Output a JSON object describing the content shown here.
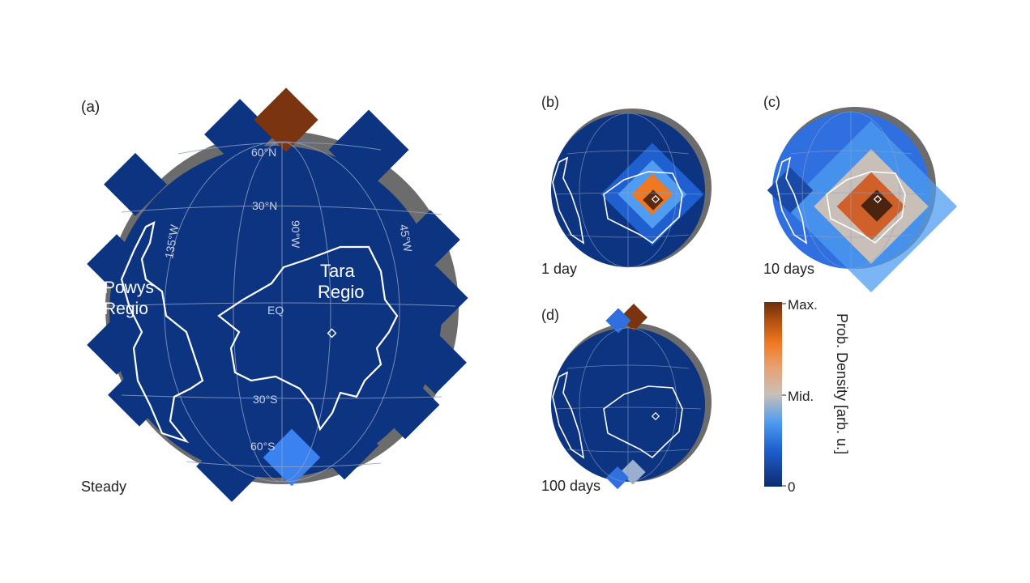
{
  "chart_data": [
    {
      "type": "heatmap",
      "panel": "(a)",
      "caption": "Steady",
      "grid_labels": {
        "latitudes": [
          "60°N",
          "30°N",
          "EQ",
          "30°S",
          "60°S"
        ],
        "longitudes": [
          "135°W",
          "90°W",
          "45°W"
        ]
      },
      "regions": [
        "Powys\nRegio",
        "Tara\nRegio"
      ],
      "marker": "target-site",
      "hotspots": [
        {
          "location": "north pole",
          "level": 1.0
        },
        {
          "location": "south pole",
          "level": 0.38
        }
      ]
    },
    {
      "type": "heatmap",
      "panel": "(b)",
      "caption": "1 day",
      "hotspots": [
        {
          "location": "Tara Regio, near marker",
          "level": 1.0
        }
      ]
    },
    {
      "type": "heatmap",
      "panel": "(c)",
      "caption": "10 days",
      "hotspots": [
        {
          "location": "Tara Regio, near marker",
          "level": 1.0
        }
      ]
    },
    {
      "type": "heatmap",
      "panel": "(d)",
      "caption": "100 days",
      "hotspots": [
        {
          "location": "north pole",
          "level": 1.0
        },
        {
          "location": "south pole",
          "level": 0.5
        }
      ]
    }
  ],
  "colorbar": {
    "label": "Prob. Density [arb. u.]",
    "ticks": [
      "Max.",
      "Mid.",
      "0"
    ],
    "colors": [
      "#0c2d6e",
      "#1f5fd0",
      "#4f9cf0",
      "#c8c0b8",
      "#e8a070",
      "#f07820",
      "#b05010",
      "#6a2e0e"
    ]
  },
  "colors": {
    "background_tile": "#0d3480",
    "globe_shadow": "#6c6c6c",
    "grid": "#8fa0c8",
    "outline": "#ffffff"
  }
}
